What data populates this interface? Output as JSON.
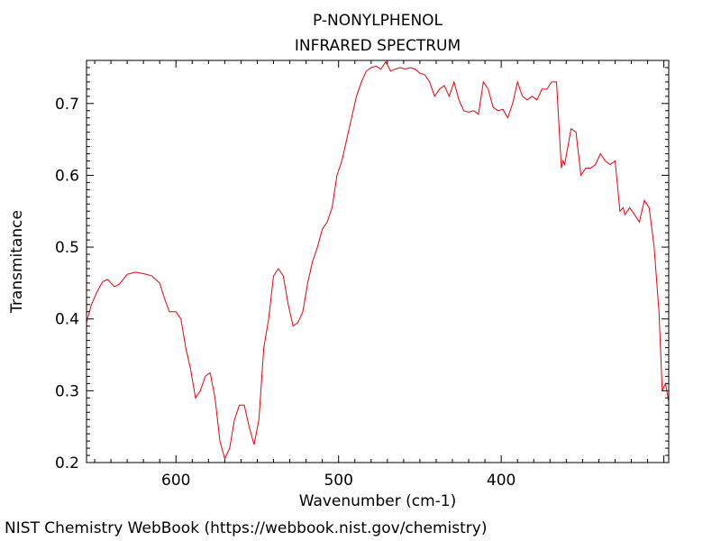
{
  "chart_data": {
    "type": "line",
    "title": "P-NONYLPHENOL",
    "subtitle": "INFRARED SPECTRUM",
    "xlabel": "Wavenumber (cm-1)",
    "ylabel": "Transmitance",
    "xlim": [
      655,
      297
    ],
    "ylim": [
      0.2,
      0.76
    ],
    "x_reversed": true,
    "xticks": [
      600,
      500,
      400
    ],
    "yticks": [
      0.2,
      0.3,
      0.4,
      0.5,
      0.6,
      0.7
    ],
    "ytick_labels": [
      "0.2",
      "0.3",
      "0.4",
      "0.5",
      "0.6",
      "0.7"
    ],
    "grid": false,
    "line_color": "#e8000b",
    "series": [
      {
        "x": [
          655,
          652,
          648,
          645,
          642,
          638,
          635,
          630,
          625,
          620,
          615,
          610,
          607,
          604,
          600,
          597,
          594,
          591,
          588,
          585,
          582,
          579,
          576,
          573,
          570,
          567,
          564,
          561,
          558,
          555,
          552,
          549,
          546,
          543,
          540,
          537,
          534,
          531,
          528,
          525,
          522,
          519,
          516,
          513,
          510,
          507,
          504,
          501,
          498,
          495,
          492,
          489,
          486,
          483,
          480,
          477,
          474,
          471,
          468,
          465,
          462,
          459,
          456,
          453,
          450,
          447,
          444,
          441,
          438,
          435,
          432,
          429,
          426,
          423,
          420,
          417,
          414,
          411,
          408,
          405,
          402,
          399,
          396,
          393,
          390,
          387,
          384,
          381,
          378,
          375,
          372,
          369,
          366,
          363,
          362,
          361,
          359,
          357,
          354,
          351,
          348,
          345,
          342,
          339,
          336,
          333,
          330,
          327,
          325,
          324,
          321,
          318,
          315,
          312,
          309,
          306,
          303,
          301,
          299,
          297
        ],
        "y": [
          0.395,
          0.42,
          0.44,
          0.452,
          0.455,
          0.445,
          0.448,
          0.462,
          0.465,
          0.463,
          0.46,
          0.45,
          0.428,
          0.41,
          0.41,
          0.4,
          0.36,
          0.33,
          0.29,
          0.3,
          0.32,
          0.325,
          0.29,
          0.23,
          0.205,
          0.22,
          0.26,
          0.28,
          0.28,
          0.25,
          0.225,
          0.26,
          0.36,
          0.4,
          0.46,
          0.47,
          0.46,
          0.42,
          0.39,
          0.395,
          0.41,
          0.45,
          0.48,
          0.5,
          0.525,
          0.535,
          0.555,
          0.6,
          0.62,
          0.65,
          0.68,
          0.71,
          0.73,
          0.745,
          0.75,
          0.752,
          0.748,
          0.758,
          0.745,
          0.748,
          0.75,
          0.748,
          0.75,
          0.748,
          0.742,
          0.74,
          0.73,
          0.71,
          0.72,
          0.725,
          0.71,
          0.73,
          0.705,
          0.69,
          0.688,
          0.69,
          0.685,
          0.73,
          0.72,
          0.695,
          0.69,
          0.692,
          0.68,
          0.7,
          0.73,
          0.71,
          0.705,
          0.71,
          0.705,
          0.72,
          0.72,
          0.73,
          0.73,
          0.61,
          0.62,
          0.615,
          0.64,
          0.665,
          0.66,
          0.6,
          0.61,
          0.61,
          0.615,
          0.63,
          0.62,
          0.615,
          0.62,
          0.55,
          0.555,
          0.545,
          0.555,
          0.545,
          0.535,
          0.565,
          0.555,
          0.5,
          0.41,
          0.3,
          0.31,
          0.285
        ]
      }
    ]
  },
  "footer": {
    "credit": "NIST Chemistry WebBook (https://webbook.nist.gov/chemistry)"
  }
}
